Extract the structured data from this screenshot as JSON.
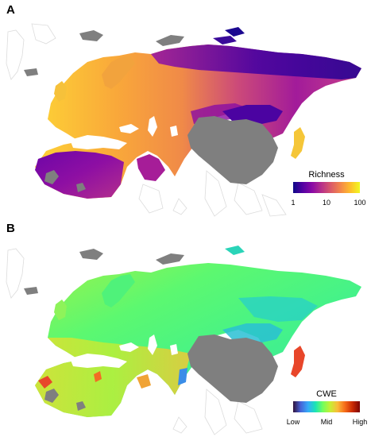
{
  "figure": {
    "panels": [
      {
        "letter": "A",
        "legend": {
          "title": "Richness",
          "scale": "log",
          "ticks": [
            "1",
            "10",
            "100"
          ],
          "colors": [
            "#0d0887",
            "#5402a3",
            "#8b0aa5",
            "#b83289",
            "#db5c68",
            "#f48849",
            "#febd2a",
            "#f0f921"
          ]
        },
        "colors": {
          "no_data": "#7f7f7f",
          "outline": "#d9d9d9"
        }
      },
      {
        "letter": "B",
        "legend": {
          "title": "CWE",
          "ticks": [
            "Low",
            "Mid",
            "High"
          ],
          "colors": [
            "#30123b",
            "#4662d7",
            "#36aaf9",
            "#1ae4b6",
            "#72fe5e",
            "#c7ef34",
            "#faba39",
            "#f66b19",
            "#ca2a04",
            "#7a0403"
          ]
        },
        "colors": {
          "no_data": "#7f7f7f",
          "outline": "#d9d9d9"
        }
      }
    ]
  }
}
